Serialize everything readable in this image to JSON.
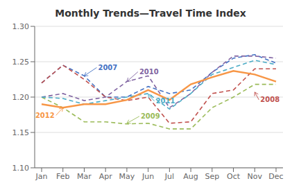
{
  "chart_data": {
    "type": "line",
    "title": "Monthly Trends—Travel Time Index",
    "categories": [
      "Jan",
      "Feb",
      "Mar",
      "Apr",
      "May",
      "Jun",
      "Jul",
      "Aug",
      "Sep",
      "Oct",
      "Nov",
      "Dec"
    ],
    "series": [
      {
        "name": "2007",
        "color": "#4472C4",
        "line_style": "dashed",
        "values": [
          1.22,
          1.245,
          1.23,
          1.2,
          1.2,
          1.215,
          1.205,
          1.21,
          1.235,
          1.255,
          1.26,
          1.248
        ]
      },
      {
        "name": "2008",
        "color": "#C0504D",
        "line_style": "dashed",
        "values": [
          1.22,
          1.245,
          1.225,
          1.2,
          1.195,
          1.2,
          1.163,
          1.165,
          1.205,
          1.21,
          1.24,
          1.24
        ]
      },
      {
        "name": "2009",
        "color": "#9BBB59",
        "line_style": "dashed",
        "values": [
          1.2,
          1.185,
          1.165,
          1.165,
          1.162,
          1.163,
          1.155,
          1.155,
          1.185,
          1.2,
          1.218,
          1.218
        ]
      },
      {
        "name": "2010",
        "color": "#8064A2",
        "line_style": "dashed",
        "values": [
          1.2,
          1.205,
          1.195,
          1.2,
          1.222,
          1.23,
          1.185,
          1.205,
          1.235,
          1.258,
          1.258,
          1.255
        ]
      },
      {
        "name": "2011",
        "color": "#4BACC6",
        "line_style": "dashed",
        "values": [
          1.2,
          1.198,
          1.19,
          1.195,
          1.2,
          1.205,
          1.183,
          1.205,
          1.232,
          1.242,
          1.252,
          1.246
        ]
      },
      {
        "name": "2012",
        "color": "#F79646",
        "line_style": "solid",
        "values": [
          1.19,
          1.185,
          1.19,
          1.19,
          1.196,
          1.21,
          1.196,
          1.218,
          1.228,
          1.237,
          1.232,
          1.222
        ]
      }
    ],
    "ylim": [
      1.1,
      1.3
    ],
    "yticks": [
      {
        "value": 1.1,
        "label": "1.10"
      },
      1.15,
      {
        "value": 1.2,
        "label": "1.20"
      },
      1.25,
      {
        "value": 1.3,
        "label": "1.30"
      }
    ],
    "grid": "y",
    "annotations": [
      {
        "text": "2007",
        "x": "Mar",
        "y": 1.23
      },
      {
        "text": "2008",
        "x": "Nov",
        "y": 1.207
      },
      {
        "text": "2009",
        "x": "May",
        "y": 1.163
      },
      {
        "text": "2010",
        "x": "May",
        "y": 1.222
      },
      {
        "text": "2011",
        "x": "Jun",
        "y": 1.204
      },
      {
        "text": "2012",
        "x": "Feb",
        "y": 1.185
      }
    ]
  }
}
